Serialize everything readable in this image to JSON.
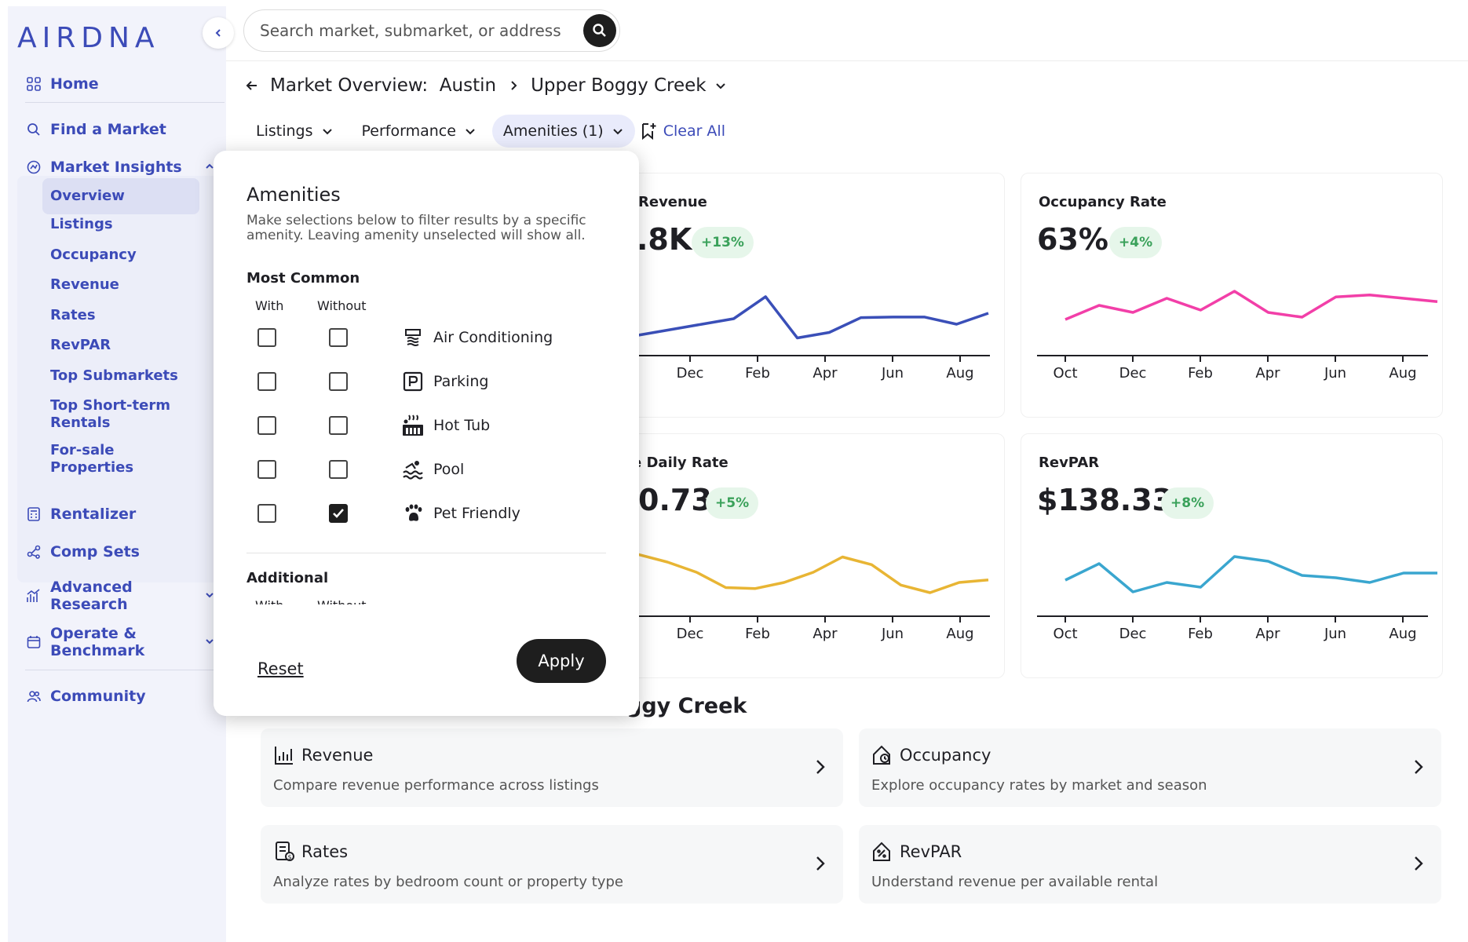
{
  "brand": {
    "logo": "AIRDNA",
    "accent": "#3c4bb8"
  },
  "search": {
    "placeholder": "Search market, submarket, or address"
  },
  "sidebar": {
    "items": [
      {
        "label": "Home",
        "icon": "grid-icon"
      },
      {
        "label": "Find a Market",
        "icon": "search-icon"
      },
      {
        "label": "Market Insights",
        "icon": "insights-icon"
      },
      {
        "label": "Rentalizer",
        "icon": "calculator-icon"
      },
      {
        "label": "Comp Sets",
        "icon": "network-icon"
      },
      {
        "label": "Advanced Research",
        "icon": "research-icon"
      },
      {
        "label": "Operate & Benchmark",
        "icon": "calendar-icon"
      },
      {
        "label": "Community",
        "icon": "people-icon"
      }
    ],
    "insights_sub": [
      "Overview",
      "Listings",
      "Occupancy",
      "Revenue",
      "Rates",
      "RevPAR",
      "Top Submarkets",
      "Top Short-term Rentals",
      "For-sale Properties"
    ]
  },
  "breadcrumb": {
    "market": "Market Overview:  Austin",
    "submarket": "Upper Boggy Creek"
  },
  "filters": {
    "listings": "Listings",
    "performance": "Performance",
    "amenities": "Amenities (1)",
    "clear": "Clear All"
  },
  "cards": [
    {
      "title": "Revenue",
      "value": ".8K",
      "change": "+13%",
      "color": "#3a4fb8",
      "x_labels": [
        "Dec",
        "Feb",
        "Apr",
        "Jun",
        "Aug"
      ]
    },
    {
      "title": "Occupancy Rate",
      "value": "63%",
      "change": "+4%",
      "color": "#f23fa8",
      "x_labels": [
        "Oct",
        "Dec",
        "Feb",
        "Apr",
        "Jun",
        "Aug"
      ]
    },
    {
      "title": "e Daily Rate",
      "value": "0.73",
      "change": "+5%",
      "color": "#e8b534",
      "x_labels": [
        "Dec",
        "Feb",
        "Apr",
        "Jun",
        "Aug"
      ]
    },
    {
      "title": "RevPAR",
      "value": "$138.33",
      "change": "+8%",
      "color": "#3aa6cf",
      "x_labels": [
        "Oct",
        "Dec",
        "Feb",
        "Apr",
        "Jun",
        "Aug"
      ]
    }
  ],
  "chart_data": [
    {
      "type": "line",
      "series": [
        {
          "values": [
            0.2,
            0.3,
            0.4,
            0.5,
            0.9,
            0.15,
            0.25,
            0.52,
            0.53,
            0.53,
            0.4,
            0.6
          ]
        }
      ]
    },
    {
      "type": "line",
      "series": [
        {
          "values": [
            0.4,
            0.7,
            0.55,
            0.85,
            0.6,
            1.0,
            0.55,
            0.45,
            0.88,
            0.92,
            0.85,
            0.78
          ]
        }
      ]
    },
    {
      "type": "line",
      "series": [
        {
          "values": [
            0.95,
            0.8,
            0.6,
            0.3,
            0.28,
            0.4,
            0.6,
            0.9,
            0.75,
            0.35,
            0.2,
            0.4,
            0.45
          ]
        }
      ]
    },
    {
      "type": "line",
      "series": [
        {
          "values": [
            0.4,
            0.75,
            0.15,
            0.35,
            0.25,
            0.9,
            0.8,
            0.5,
            0.45,
            0.35,
            0.55,
            0.55
          ]
        }
      ]
    }
  ],
  "reports": {
    "section_title": "ggy Creek",
    "items": [
      {
        "title": "Revenue",
        "desc": "Compare revenue performance across listings",
        "icon": "bar-chart-icon"
      },
      {
        "title": "Occupancy",
        "desc": "Explore occupancy rates by market and season",
        "icon": "house-clock-icon"
      },
      {
        "title": "Rates",
        "desc": "Analyze rates by bedroom count or property type",
        "icon": "receipt-icon"
      },
      {
        "title": "RevPAR",
        "desc": "Understand revenue per available rental",
        "icon": "percent-house-icon"
      }
    ]
  },
  "amenities_popup": {
    "title": "Amenities",
    "description": "Make selections below to filter results by a specific amenity. Leaving amenity unselected will show all.",
    "most_common": "Most Common",
    "col_with": "With",
    "col_without": "Without",
    "items": [
      {
        "label": "Air Conditioning",
        "icon": "air-conditioning-icon",
        "with": false,
        "without": false
      },
      {
        "label": "Parking",
        "icon": "parking-icon",
        "with": false,
        "without": false
      },
      {
        "label": "Hot Tub",
        "icon": "hot-tub-icon",
        "with": false,
        "without": false
      },
      {
        "label": "Pool",
        "icon": "pool-icon",
        "with": false,
        "without": false
      },
      {
        "label": "Pet Friendly",
        "icon": "paw-icon",
        "with": false,
        "without": true
      }
    ],
    "additional": "Additional",
    "reset": "Reset",
    "apply": "Apply"
  }
}
